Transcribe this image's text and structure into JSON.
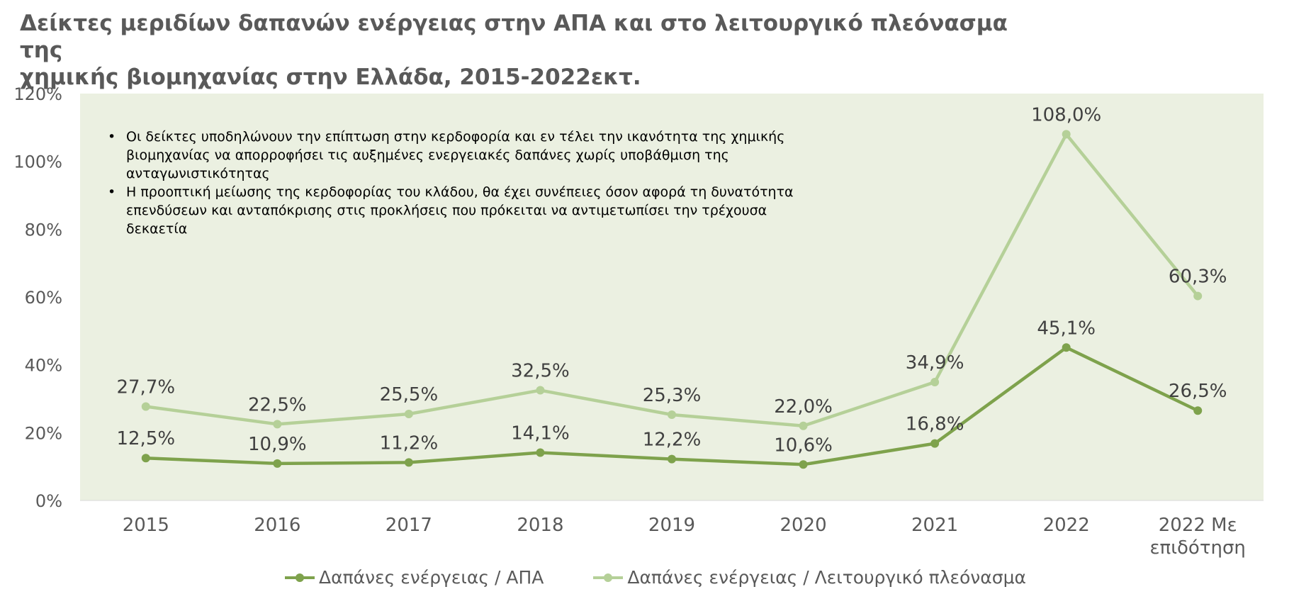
{
  "title_lines": [
    "Δείκτες μεριδίων δαπανών ενέργειας στην ΑΠΑ και στο λειτουργικό πλεόνασμα της",
    "χημικής βιομηχανίας στην Ελλάδα, 2015-2022εκτ."
  ],
  "notes": {
    "bullet_symbol": "•",
    "items": [
      {
        "lines": [
          "Οι δείκτες υποδηλώνουν την επίπτωση στην κερδοφορία και εν τέλει την ικανότητα της χημικής",
          "βιομηχανίας να απορροφήσει τις αυξημένες ενεργειακές δαπάνες χωρίς υποβάθμιση της",
          "ανταγωνιστικότητας"
        ]
      },
      {
        "lines": [
          "Η προοπτική μείωσης της κερδοφορίας του κλάδου, θα έχει συνέπειες όσον αφορά τη δυνατότητα",
          "επενδύσεων και ανταπόκρισης στις προκλήσεις που πρόκειται να αντιμετωπίσει την τρέχουσα",
          "δεκαετία"
        ]
      }
    ]
  },
  "colors": {
    "plot_background": "#ebf0e1",
    "series_dark": "#7ea24c",
    "series_light": "#b5d098",
    "text": "#595959"
  },
  "chart_data": {
    "type": "line",
    "categories": [
      [
        "2015"
      ],
      [
        "2016"
      ],
      [
        "2017"
      ],
      [
        "2018"
      ],
      [
        "2019"
      ],
      [
        "2020"
      ],
      [
        "2021"
      ],
      [
        "2022"
      ],
      [
        "2022 Με",
        "επιδότηση"
      ]
    ],
    "y_ticks": [
      "0%",
      "20%",
      "40%",
      "60%",
      "80%",
      "100%",
      "120%"
    ],
    "ylim": [
      0,
      120
    ],
    "grid": false,
    "legend_position": "bottom",
    "series": [
      {
        "name": "Δαπάνες ενέργειας / ΑΠΑ",
        "color": "#7ea24c",
        "values": [
          12.5,
          10.9,
          11.2,
          14.1,
          12.2,
          10.6,
          16.8,
          45.1,
          26.5
        ],
        "labels": [
          "12,5%",
          "10,9%",
          "11,2%",
          "14,1%",
          "12,2%",
          "10,6%",
          "16,8%",
          "45,1%",
          "26,5%"
        ]
      },
      {
        "name": "Δαπάνες ενέργειας / Λειτουργικό πλεόνασμα",
        "color": "#b5d098",
        "values": [
          27.7,
          22.5,
          25.5,
          32.5,
          25.3,
          22.0,
          34.9,
          108.0,
          60.3
        ],
        "labels": [
          "27,7%",
          "22,5%",
          "25,5%",
          "32,5%",
          "25,3%",
          "22,0%",
          "34,9%",
          "108,0%",
          "60,3%"
        ]
      }
    ]
  }
}
